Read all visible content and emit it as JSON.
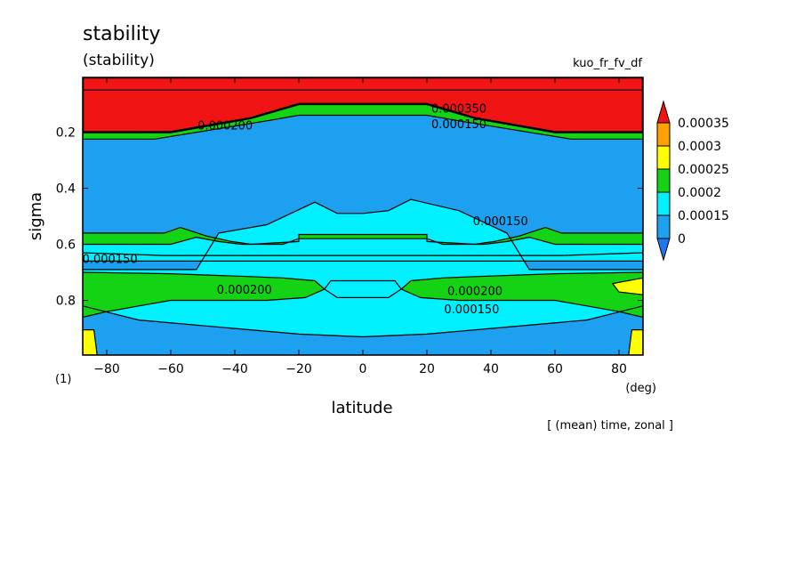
{
  "header": {
    "title": "stability",
    "subtitle": "(stability)",
    "run_name": "kuo_fr_fv_df",
    "panel_index": "(1)",
    "footer_note": "[ (mean) time, zonal ]"
  },
  "chart_data": {
    "type": "contour",
    "xlabel": "latitude",
    "x_unit": "(deg)",
    "ylabel": "sigma",
    "xlim": [
      -87.5,
      87.5
    ],
    "ylim": [
      0.995,
      0.005
    ],
    "y_axis": "reversed",
    "x_ticks": [
      -80,
      -60,
      -40,
      -20,
      0,
      20,
      40,
      60,
      80
    ],
    "x_tick_labels": [
      "−80",
      "−60",
      "−40",
      "−20",
      "0",
      "20",
      "40",
      "60",
      "80"
    ],
    "y_ticks": [
      0.2,
      0.4,
      0.6,
      0.8
    ],
    "y_tick_labels": [
      "0.2",
      "0.4",
      "0.6",
      "0.8"
    ],
    "levels": [
      0,
      0.00015,
      0.0002,
      0.00025,
      0.0003,
      0.00035
    ],
    "level_colors": [
      "#1e78f0",
      "#1ea0f0",
      "#00f0ff",
      "#14d214",
      "#ffff00",
      "#ffa000",
      "#f01414"
    ],
    "colorbar": {
      "labels": [
        "0.00035",
        "0.0003",
        "0.00025",
        "0.0002",
        "0.00015",
        "0"
      ],
      "extend": "both"
    },
    "contour_labels": [
      {
        "text": "0.000150",
        "lat": -79,
        "sigma": 0.655
      },
      {
        "text": "0.000200",
        "lat": -37,
        "sigma": 0.765
      },
      {
        "text": "0.000200",
        "lat": -43,
        "sigma": 0.18
      },
      {
        "text": "0.000150",
        "lat": 43,
        "sigma": 0.52
      },
      {
        "text": "0.000350",
        "lat": 30,
        "sigma": 0.12
      },
      {
        "text": "0.000150",
        "lat": 30,
        "sigma": 0.175
      },
      {
        "text": "0.000200",
        "lat": 35,
        "sigma": 0.77
      },
      {
        "text": "0.000150",
        "lat": 34,
        "sigma": 0.835
      }
    ],
    "field_regions": [
      {
        "level": "<0.00015",
        "polygon": [
          [
            -87.5,
            0.995
          ],
          [
            87.5,
            0.995
          ],
          [
            87.5,
            0.005
          ],
          [
            -87.5,
            0.005
          ]
        ]
      },
      {
        "level": "0.00015-0.0002",
        "polygon": [
          [
            -87.5,
            0.69
          ],
          [
            -52,
            0.69
          ],
          [
            -45,
            0.56
          ],
          [
            -30,
            0.53
          ],
          [
            -15,
            0.45
          ],
          [
            -8,
            0.49
          ],
          [
            0,
            0.49
          ],
          [
            8,
            0.48
          ],
          [
            15,
            0.44
          ],
          [
            30,
            0.48
          ],
          [
            45,
            0.56
          ],
          [
            52,
            0.69
          ],
          [
            87.5,
            0.69
          ],
          [
            87.5,
            0.82
          ],
          [
            70,
            0.87
          ],
          [
            40,
            0.9
          ],
          [
            20,
            0.92
          ],
          [
            0,
            0.93
          ],
          [
            -20,
            0.92
          ],
          [
            -40,
            0.9
          ],
          [
            -70,
            0.87
          ],
          [
            -87.5,
            0.82
          ]
        ]
      },
      {
        "level": "0.0002-0.00025",
        "polygon": [
          [
            -87.5,
            0.56
          ],
          [
            -62,
            0.56
          ],
          [
            -57,
            0.54
          ],
          [
            -49,
            0.57
          ],
          [
            -41,
            0.59
          ],
          [
            -35,
            0.6
          ],
          [
            -20,
            0.59
          ],
          [
            -20,
            0.565
          ],
          [
            20,
            0.565
          ],
          [
            20,
            0.59
          ],
          [
            35,
            0.6
          ],
          [
            41,
            0.59
          ],
          [
            49,
            0.57
          ],
          [
            57,
            0.54
          ],
          [
            62,
            0.56
          ],
          [
            87.5,
            0.56
          ],
          [
            87.5,
            0.63
          ],
          [
            62,
            0.64
          ],
          [
            -62,
            0.64
          ],
          [
            -87.5,
            0.63
          ]
        ]
      },
      {
        "level": "0.00015-0.0002",
        "polygon": [
          [
            -87.5,
            0.6
          ],
          [
            -60,
            0.6
          ],
          [
            -52,
            0.575
          ],
          [
            -45,
            0.59
          ],
          [
            -38,
            0.6
          ],
          [
            -25,
            0.6
          ],
          [
            -20,
            0.58
          ],
          [
            20,
            0.58
          ],
          [
            25,
            0.6
          ],
          [
            38,
            0.6
          ],
          [
            45,
            0.59
          ],
          [
            52,
            0.575
          ],
          [
            60,
            0.6
          ],
          [
            87.5,
            0.6
          ],
          [
            87.5,
            0.66
          ],
          [
            -87.5,
            0.66
          ]
        ]
      },
      {
        "level": "0.0002-0.00025",
        "polygon": [
          [
            -87.5,
            0.7
          ],
          [
            -60,
            0.705
          ],
          [
            -35,
            0.715
          ],
          [
            -25,
            0.72
          ],
          [
            -15,
            0.73
          ],
          [
            -12,
            0.76
          ],
          [
            -18,
            0.79
          ],
          [
            -30,
            0.8
          ],
          [
            -60,
            0.8
          ],
          [
            -70,
            0.82
          ],
          [
            -80,
            0.84
          ],
          [
            -87.5,
            0.86
          ]
        ]
      },
      {
        "level": "0.0002-0.00025",
        "polygon": [
          [
            87.5,
            0.7
          ],
          [
            60,
            0.705
          ],
          [
            35,
            0.715
          ],
          [
            25,
            0.72
          ],
          [
            15,
            0.73
          ],
          [
            12,
            0.76
          ],
          [
            18,
            0.79
          ],
          [
            30,
            0.8
          ],
          [
            60,
            0.8
          ],
          [
            70,
            0.82
          ],
          [
            80,
            0.84
          ],
          [
            87.5,
            0.86
          ]
        ]
      },
      {
        "level": "0.00025-0.0003",
        "polygon": [
          [
            78,
            0.74
          ],
          [
            87.5,
            0.72
          ],
          [
            87.5,
            0.78
          ],
          [
            80,
            0.77
          ]
        ]
      },
      {
        "level": "0.00015-0.0002",
        "polygon": [
          [
            -10,
            0.73
          ],
          [
            10,
            0.73
          ],
          [
            12,
            0.76
          ],
          [
            8,
            0.79
          ],
          [
            -8,
            0.79
          ],
          [
            -12,
            0.76
          ]
        ]
      },
      {
        "level": "0.0002-0.00025",
        "polygon": [
          [
            -87.5,
            0.05
          ],
          [
            87.5,
            0.05
          ],
          [
            87.5,
            0.225
          ],
          [
            65,
            0.225
          ],
          [
            30,
            0.16
          ],
          [
            20,
            0.14
          ],
          [
            -20,
            0.14
          ],
          [
            -30,
            0.16
          ],
          [
            -65,
            0.225
          ],
          [
            -87.5,
            0.225
          ]
        ]
      },
      {
        "level": "0.00035+",
        "polygon": [
          [
            -87.5,
            0.005
          ],
          [
            87.5,
            0.005
          ],
          [
            87.5,
            0.2
          ],
          [
            60,
            0.2
          ],
          [
            35,
            0.15
          ],
          [
            20,
            0.1
          ],
          [
            -20,
            0.1
          ],
          [
            -35,
            0.15
          ],
          [
            -60,
            0.2
          ],
          [
            -87.5,
            0.2
          ]
        ]
      },
      {
        "level": "0.00025-0.0003",
        "polygon": [
          [
            -87.5,
            0.905
          ],
          [
            -84,
            0.905
          ],
          [
            -83,
            0.995
          ],
          [
            -87.5,
            0.995
          ]
        ]
      },
      {
        "level": "0.00025-0.0003",
        "polygon": [
          [
            87.5,
            0.905
          ],
          [
            84,
            0.905
          ],
          [
            83,
            0.995
          ],
          [
            87.5,
            0.995
          ]
        ]
      }
    ]
  }
}
